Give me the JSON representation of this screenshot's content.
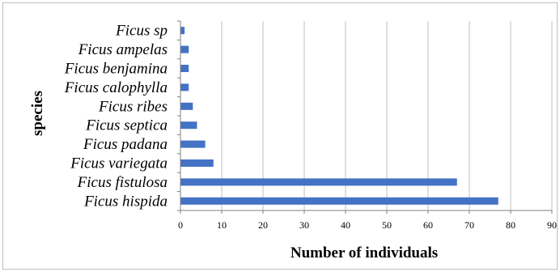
{
  "chart_data": {
    "type": "bar",
    "orientation": "horizontal",
    "categories": [
      "Ficus sp",
      "Ficus ampelas",
      "Ficus benjamina",
      "Ficus calophylla",
      "Ficus ribes",
      "Ficus septica",
      "Ficus padana",
      "Ficus variegata",
      "Ficus fistulosa",
      "Ficus hispida"
    ],
    "values": [
      1,
      2,
      2,
      2,
      3,
      4,
      6,
      8,
      67,
      77
    ],
    "xlabel": "Number of individuals",
    "ylabel": "species",
    "xlim": [
      0,
      90
    ],
    "xticks": [
      "0",
      "10",
      "20",
      "30",
      "40",
      "50",
      "60",
      "70",
      "80",
      "90"
    ],
    "grid": "vertical",
    "bar_color": "#4472c4",
    "grid_color": "#bfbfbf"
  }
}
